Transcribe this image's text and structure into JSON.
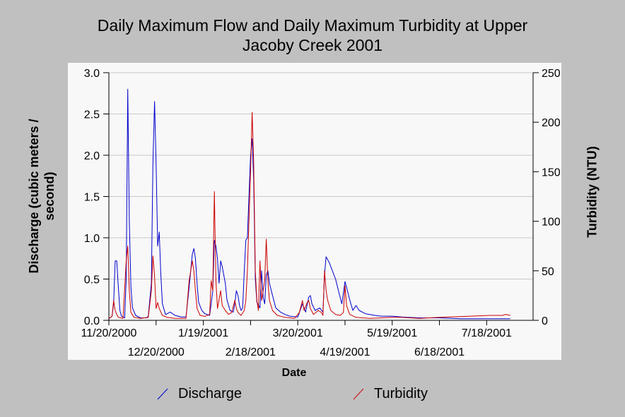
{
  "chart_data": {
    "type": "line",
    "title_lines": [
      "Daily Maximum Flow and Daily Maximum Turbidity at Upper",
      "Jacoby Creek 2001"
    ],
    "xlabel": "Date",
    "ylabel_left_lines": [
      "Discharge (cubic meters /",
      "second)"
    ],
    "ylabel_right": "Turbidity (NTU)",
    "x_start": "2000-11-20",
    "x_range": [
      "2000-11-20",
      "2001-08-15"
    ],
    "ylim_left": [
      0,
      3.0
    ],
    "ylim_right": [
      0,
      250
    ],
    "yticks_left": [
      "0.0",
      "0.5",
      "1.0",
      "1.5",
      "2.0",
      "2.5",
      "3.0"
    ],
    "yticks_right": [
      "0",
      "50",
      "100",
      "150",
      "200",
      "250"
    ],
    "xticks_upper": [
      {
        "date": "2000-11-20",
        "label": "11/20/2000"
      },
      {
        "date": "2001-01-19",
        "label": "1/19/2001"
      },
      {
        "date": "2001-03-20",
        "label": "3/20/2001"
      },
      {
        "date": "2001-05-19",
        "label": "5/19/2001"
      },
      {
        "date": "2001-07-18",
        "label": "7/18/2001"
      }
    ],
    "xticks_lower": [
      {
        "date": "2000-12-20",
        "label": "12/20/2000"
      },
      {
        "date": "2001-02-18",
        "label": "2/18/2001"
      },
      {
        "date": "2001-04-19",
        "label": "4/19/2001"
      },
      {
        "date": "2001-06-18",
        "label": "6/18/2001"
      }
    ],
    "grid": "horizontal",
    "legend_position": "bottom",
    "series": [
      {
        "name": "Discharge",
        "axis": "left",
        "color": "#0000cc",
        "points": [
          [
            "2000-11-20",
            0.02
          ],
          [
            "2000-11-22",
            0.05
          ],
          [
            "2000-11-23",
            0.2
          ],
          [
            "2000-11-24",
            0.72
          ],
          [
            "2000-11-25",
            0.72
          ],
          [
            "2000-11-26",
            0.4
          ],
          [
            "2000-11-27",
            0.12
          ],
          [
            "2000-11-28",
            0.05
          ],
          [
            "2000-11-30",
            0.03
          ],
          [
            "2000-12-01",
            0.5
          ],
          [
            "2000-12-02",
            2.8
          ],
          [
            "2000-12-03",
            1.2
          ],
          [
            "2000-12-04",
            0.4
          ],
          [
            "2000-12-05",
            0.15
          ],
          [
            "2000-12-07",
            0.06
          ],
          [
            "2000-12-10",
            0.03
          ],
          [
            "2000-12-14",
            0.03
          ],
          [
            "2000-12-15",
            0.05
          ],
          [
            "2000-12-17",
            0.45
          ],
          [
            "2000-12-18",
            1.9
          ],
          [
            "2000-12-19",
            2.65
          ],
          [
            "2000-12-20",
            1.9
          ],
          [
            "2000-12-21",
            0.9
          ],
          [
            "2000-12-22",
            1.07
          ],
          [
            "2000-12-23",
            0.55
          ],
          [
            "2000-12-24",
            0.2
          ],
          [
            "2000-12-26",
            0.07
          ],
          [
            "2000-12-29",
            0.1
          ],
          [
            "2001-01-01",
            0.06
          ],
          [
            "2001-01-05",
            0.04
          ],
          [
            "2001-01-08",
            0.04
          ],
          [
            "2001-01-10",
            0.4
          ],
          [
            "2001-01-12",
            0.8
          ],
          [
            "2001-01-13",
            0.87
          ],
          [
            "2001-01-14",
            0.75
          ],
          [
            "2001-01-15",
            0.45
          ],
          [
            "2001-01-16",
            0.22
          ],
          [
            "2001-01-18",
            0.12
          ],
          [
            "2001-01-20",
            0.08
          ],
          [
            "2001-01-23",
            0.06
          ],
          [
            "2001-01-25",
            0.35
          ],
          [
            "2001-01-26",
            0.97
          ],
          [
            "2001-01-27",
            0.9
          ],
          [
            "2001-01-28",
            0.75
          ],
          [
            "2001-01-29",
            0.45
          ],
          [
            "2001-01-30",
            0.72
          ],
          [
            "2001-01-31",
            0.65
          ],
          [
            "2001-02-02",
            0.45
          ],
          [
            "2001-02-03",
            0.25
          ],
          [
            "2001-02-05",
            0.12
          ],
          [
            "2001-02-07",
            0.1
          ],
          [
            "2001-02-08",
            0.2
          ],
          [
            "2001-02-09",
            0.36
          ],
          [
            "2001-02-10",
            0.3
          ],
          [
            "2001-02-11",
            0.18
          ],
          [
            "2001-02-12",
            0.12
          ],
          [
            "2001-02-13",
            0.15
          ],
          [
            "2001-02-14",
            0.6
          ],
          [
            "2001-02-15",
            0.97
          ],
          [
            "2001-02-16",
            1.0
          ],
          [
            "2001-02-17",
            1.5
          ],
          [
            "2001-02-18",
            2.0
          ],
          [
            "2001-02-19",
            2.2
          ],
          [
            "2001-02-20",
            1.7
          ],
          [
            "2001-02-21",
            0.5
          ],
          [
            "2001-02-22",
            0.22
          ],
          [
            "2001-02-24",
            0.15
          ],
          [
            "2001-02-25",
            0.6
          ],
          [
            "2001-02-26",
            0.28
          ],
          [
            "2001-02-27",
            0.2
          ],
          [
            "2001-02-28",
            0.55
          ],
          [
            "2001-03-01",
            0.6
          ],
          [
            "2001-03-02",
            0.45
          ],
          [
            "2001-03-04",
            0.3
          ],
          [
            "2001-03-06",
            0.15
          ],
          [
            "2001-03-09",
            0.1
          ],
          [
            "2001-03-12",
            0.07
          ],
          [
            "2001-03-15",
            0.05
          ],
          [
            "2001-03-20",
            0.04
          ],
          [
            "2001-03-23",
            0.2
          ],
          [
            "2001-03-25",
            0.1
          ],
          [
            "2001-03-27",
            0.28
          ],
          [
            "2001-03-28",
            0.3
          ],
          [
            "2001-03-29",
            0.2
          ],
          [
            "2001-03-31",
            0.12
          ],
          [
            "2001-04-03",
            0.15
          ],
          [
            "2001-04-05",
            0.1
          ],
          [
            "2001-04-06",
            0.55
          ],
          [
            "2001-04-07",
            0.77
          ],
          [
            "2001-04-09",
            0.7
          ],
          [
            "2001-04-11",
            0.6
          ],
          [
            "2001-04-13",
            0.5
          ],
          [
            "2001-04-15",
            0.35
          ],
          [
            "2001-04-17",
            0.2
          ],
          [
            "2001-04-19",
            0.47
          ],
          [
            "2001-04-20",
            0.4
          ],
          [
            "2001-04-22",
            0.25
          ],
          [
            "2001-04-24",
            0.12
          ],
          [
            "2001-04-26",
            0.18
          ],
          [
            "2001-04-28",
            0.12
          ],
          [
            "2001-05-02",
            0.08
          ],
          [
            "2001-05-08",
            0.06
          ],
          [
            "2001-05-12",
            0.05
          ],
          [
            "2001-05-19",
            0.05
          ],
          [
            "2001-05-25",
            0.04
          ],
          [
            "2001-06-05",
            0.03
          ],
          [
            "2001-06-18",
            0.03
          ],
          [
            "2001-07-01",
            0.02
          ],
          [
            "2001-07-15",
            0.02
          ],
          [
            "2001-08-02",
            0.02
          ]
        ]
      },
      {
        "name": "Turbidity",
        "axis": "right",
        "color": "#cc0000",
        "points": [
          [
            "2000-11-20",
            2
          ],
          [
            "2000-11-22",
            4
          ],
          [
            "2000-11-23",
            20
          ],
          [
            "2000-11-24",
            10
          ],
          [
            "2000-11-25",
            6
          ],
          [
            "2000-11-26",
            3
          ],
          [
            "2000-11-29",
            2
          ],
          [
            "2000-12-01",
            60
          ],
          [
            "2000-12-02",
            75
          ],
          [
            "2000-12-03",
            30
          ],
          [
            "2000-12-04",
            8
          ],
          [
            "2000-12-06",
            3
          ],
          [
            "2000-12-10",
            2
          ],
          [
            "2000-12-15",
            3
          ],
          [
            "2000-12-17",
            30
          ],
          [
            "2000-12-18",
            65
          ],
          [
            "2000-12-19",
            45
          ],
          [
            "2000-12-20",
            12
          ],
          [
            "2000-12-21",
            18
          ],
          [
            "2000-12-22",
            12
          ],
          [
            "2000-12-24",
            5
          ],
          [
            "2000-12-27",
            3
          ],
          [
            "2001-01-01",
            2
          ],
          [
            "2001-01-08",
            2
          ],
          [
            "2001-01-10",
            40
          ],
          [
            "2001-01-12",
            60
          ],
          [
            "2001-01-13",
            50
          ],
          [
            "2001-01-14",
            30
          ],
          [
            "2001-01-15",
            12
          ],
          [
            "2001-01-17",
            5
          ],
          [
            "2001-01-20",
            4
          ],
          [
            "2001-01-23",
            6
          ],
          [
            "2001-01-24",
            40
          ],
          [
            "2001-01-25",
            30
          ],
          [
            "2001-01-26",
            130
          ],
          [
            "2001-01-27",
            40
          ],
          [
            "2001-01-28",
            12
          ],
          [
            "2001-01-30",
            30
          ],
          [
            "2001-01-31",
            15
          ],
          [
            "2001-02-02",
            10
          ],
          [
            "2001-02-04",
            6
          ],
          [
            "2001-02-06",
            8
          ],
          [
            "2001-02-08",
            20
          ],
          [
            "2001-02-09",
            12
          ],
          [
            "2001-02-10",
            8
          ],
          [
            "2001-02-12",
            5
          ],
          [
            "2001-02-14",
            10
          ],
          [
            "2001-02-15",
            20
          ],
          [
            "2001-02-16",
            50
          ],
          [
            "2001-02-17",
            100
          ],
          [
            "2001-02-18",
            150
          ],
          [
            "2001-02-19",
            210
          ],
          [
            "2001-02-20",
            160
          ],
          [
            "2001-02-21",
            50
          ],
          [
            "2001-02-22",
            20
          ],
          [
            "2001-02-23",
            10
          ],
          [
            "2001-02-24",
            60
          ],
          [
            "2001-02-25",
            20
          ],
          [
            "2001-02-27",
            40
          ],
          [
            "2001-02-28",
            82
          ],
          [
            "2001-03-01",
            40
          ],
          [
            "2001-03-02",
            20
          ],
          [
            "2001-03-04",
            10
          ],
          [
            "2001-03-07",
            5
          ],
          [
            "2001-03-12",
            3
          ],
          [
            "2001-03-18",
            2
          ],
          [
            "2001-03-21",
            8
          ],
          [
            "2001-03-23",
            20
          ],
          [
            "2001-03-24",
            10
          ],
          [
            "2001-03-26",
            18
          ],
          [
            "2001-03-27",
            20
          ],
          [
            "2001-03-28",
            12
          ],
          [
            "2001-03-30",
            6
          ],
          [
            "2001-04-02",
            10
          ],
          [
            "2001-04-04",
            8
          ],
          [
            "2001-04-05",
            5
          ],
          [
            "2001-04-06",
            50
          ],
          [
            "2001-04-07",
            30
          ],
          [
            "2001-04-08",
            20
          ],
          [
            "2001-04-10",
            10
          ],
          [
            "2001-04-13",
            6
          ],
          [
            "2001-04-16",
            5
          ],
          [
            "2001-04-18",
            8
          ],
          [
            "2001-04-19",
            35
          ],
          [
            "2001-04-20",
            15
          ],
          [
            "2001-04-22",
            6
          ],
          [
            "2001-04-26",
            3
          ],
          [
            "2001-05-05",
            2
          ],
          [
            "2001-05-19",
            3
          ],
          [
            "2001-05-25",
            3
          ],
          [
            "2001-06-05",
            2
          ],
          [
            "2001-06-18",
            3
          ],
          [
            "2001-07-05",
            4
          ],
          [
            "2001-07-20",
            5
          ],
          [
            "2001-07-28",
            5
          ],
          [
            "2001-07-30",
            6
          ],
          [
            "2001-08-02",
            5
          ]
        ]
      }
    ]
  }
}
